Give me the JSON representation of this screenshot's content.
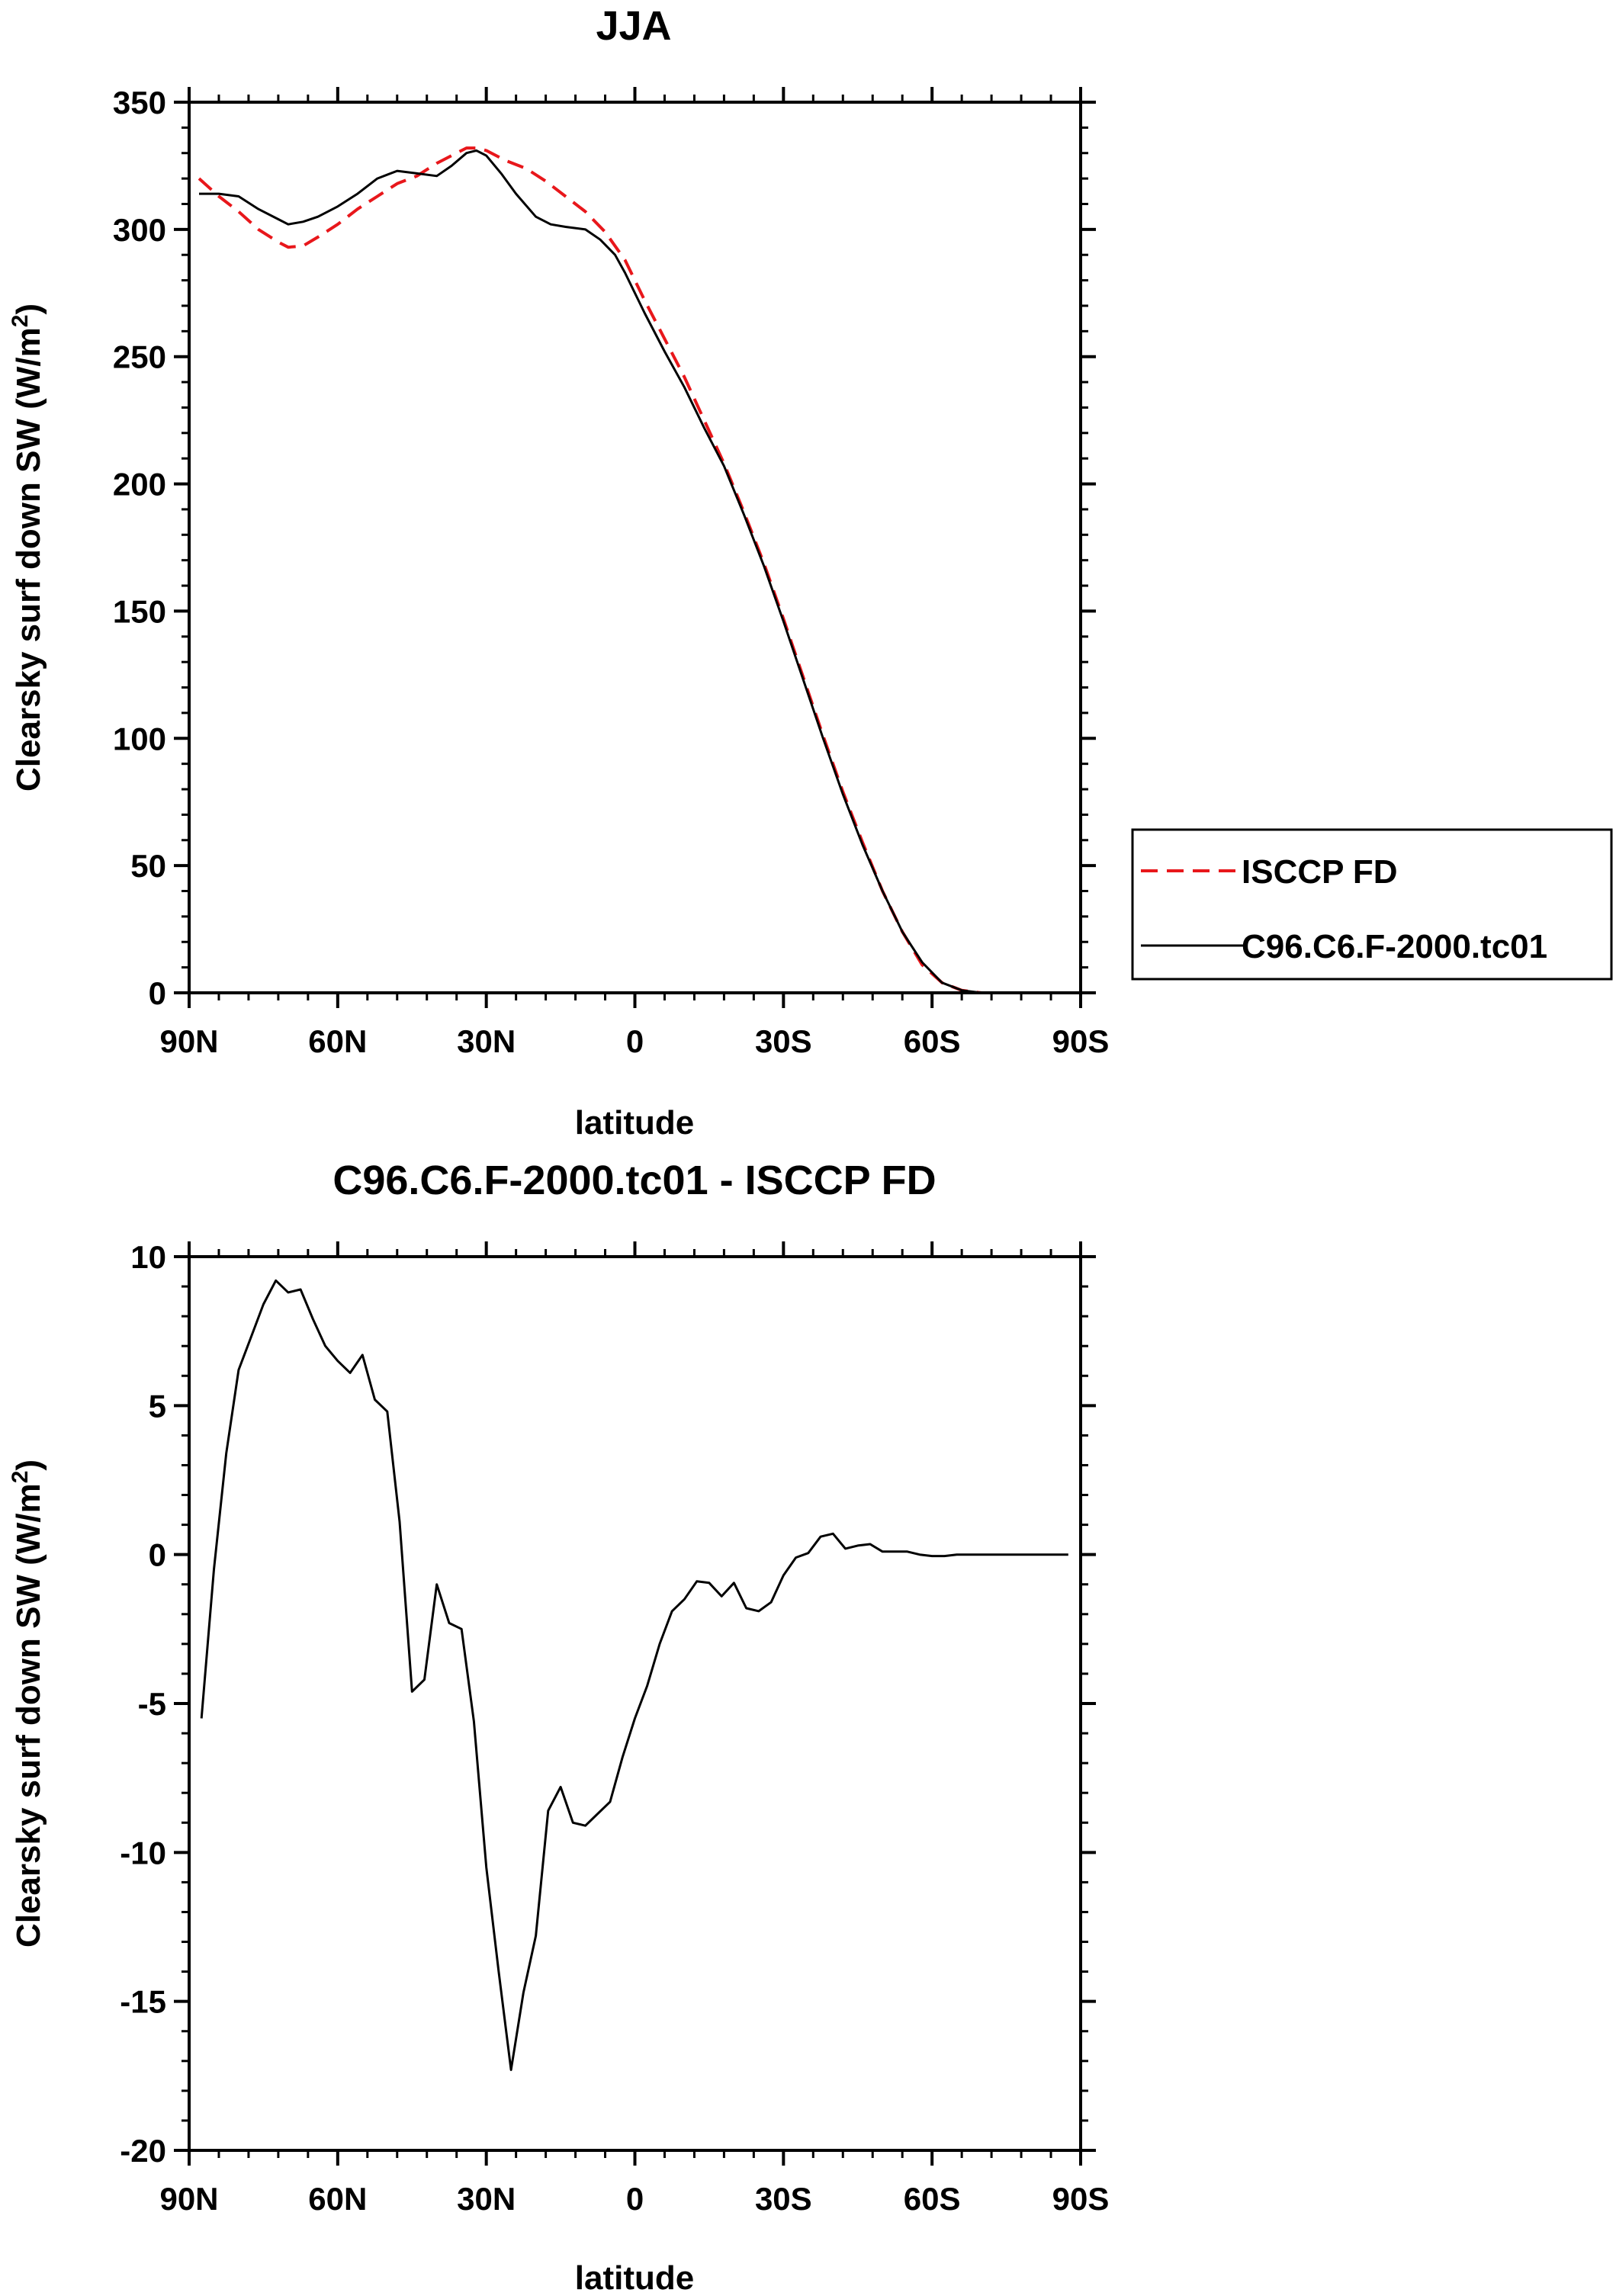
{
  "chart_data": [
    {
      "type": "line",
      "title": "JJA",
      "xlabel": "latitude",
      "ylabel": "Clearsky surf down SW (W/m",
      "ylabel_sup": "2",
      "ylabel_end": ")",
      "xlim": [
        -90,
        90
      ],
      "ylim": [
        0,
        350
      ],
      "xticks": [
        -90,
        -60,
        -30,
        0,
        30,
        60,
        90
      ],
      "xtick_labels": [
        "90N",
        "60N",
        "30N",
        "0",
        "30S",
        "60S",
        "90S"
      ],
      "yticks": [
        0,
        50,
        100,
        150,
        200,
        250,
        300,
        350
      ],
      "ytick_labels": [
        "0",
        "50",
        "100",
        "150",
        "200",
        "250",
        "300",
        "350"
      ],
      "series": [
        {
          "name": "ISCCP FD",
          "color": "#e8171b",
          "style": "dashed",
          "x": [
            -88,
            -84,
            -80,
            -76,
            -72,
            -70,
            -67,
            -64,
            -60,
            -56,
            -52,
            -48,
            -44,
            -40,
            -36,
            -34,
            -32,
            -30,
            -26,
            -22,
            -18,
            -14,
            -10,
            -6,
            -2,
            2,
            6,
            10,
            14,
            18,
            22,
            26,
            30,
            34,
            38,
            42,
            46,
            50,
            54,
            58,
            62,
            66,
            70,
            74,
            78,
            82,
            86,
            88
          ],
          "values": [
            320,
            313,
            307,
            300,
            295,
            293,
            293.5,
            297,
            302,
            308,
            313,
            318,
            321,
            326,
            330,
            332,
            332,
            331,
            327,
            324,
            319,
            313,
            307,
            299,
            288,
            272,
            257,
            242,
            225,
            208,
            189,
            169,
            147,
            124,
            101,
            79,
            59,
            40,
            24,
            11,
            4,
            1,
            0,
            0,
            0,
            0,
            0,
            0
          ]
        },
        {
          "name": "C96.C6.F-2000.tc01",
          "color": "#000000",
          "style": "solid",
          "x": [
            -88,
            -84,
            -80,
            -76,
            -72,
            -70,
            -67,
            -64,
            -60,
            -56,
            -52,
            -48,
            -44,
            -40,
            -37,
            -34,
            -32,
            -30,
            -27,
            -24,
            -20,
            -17,
            -14,
            -10,
            -7,
            -4,
            -2,
            2,
            6,
            10,
            14,
            18,
            22,
            26,
            30,
            34,
            38,
            42,
            46,
            50,
            54,
            58,
            62,
            66,
            70,
            74,
            78,
            82,
            86,
            88
          ],
          "values": [
            314,
            314,
            313,
            308,
            304,
            302,
            303,
            305,
            309,
            314,
            320,
            323,
            322,
            321,
            325,
            330,
            331,
            329,
            322,
            314,
            305,
            302,
            301,
            300,
            296,
            290,
            283,
            267,
            252,
            238,
            222,
            207,
            188,
            168,
            146,
            123,
            100,
            78,
            58,
            40,
            24,
            12,
            4,
            1,
            0,
            0,
            0,
            0,
            0,
            0
          ]
        }
      ],
      "legend": {
        "position": "right",
        "entries": [
          "ISCCP FD",
          "C96.C6.F-2000.tc01"
        ]
      }
    },
    {
      "type": "line",
      "title": "C96.C6.F-2000.tc01 - ISCCP FD",
      "xlabel": "latitude",
      "ylabel": "Clearsky surf down SW (W/m",
      "ylabel_sup": "2",
      "ylabel_end": ")",
      "xlim": [
        -90,
        90
      ],
      "ylim": [
        -20,
        10
      ],
      "xticks": [
        -90,
        -60,
        -30,
        0,
        30,
        60,
        90
      ],
      "xtick_labels": [
        "90N",
        "60N",
        "30N",
        "0",
        "30S",
        "60S",
        "90S"
      ],
      "yticks": [
        -20,
        -15,
        -10,
        -5,
        0,
        5,
        10
      ],
      "ytick_labels": [
        "-20",
        "-15",
        "-10",
        "-5",
        "0",
        "5",
        "10"
      ],
      "series": [
        {
          "name": "C96.C6.F-2000.tc01 - ISCCP FD",
          "color": "#000000",
          "style": "solid",
          "x": [
            -87.5,
            -85,
            -82.5,
            -80,
            -77.5,
            -75,
            -72.5,
            -70,
            -67.5,
            -65,
            -62.5,
            -60,
            -57.5,
            -55,
            -52.5,
            -50,
            -47.5,
            -45,
            -42.5,
            -40,
            -37.5,
            -35,
            -32.5,
            -30,
            -27.5,
            -25,
            -22.5,
            -20,
            -17.5,
            -15,
            -12.5,
            -10,
            -7.5,
            -5,
            -2.5,
            0,
            2.5,
            5,
            7.5,
            10,
            12.5,
            15,
            17.5,
            20,
            22.5,
            25,
            27.5,
            30,
            32.5,
            35,
            37.5,
            40,
            42.5,
            45,
            47.5,
            50,
            52.5,
            55,
            57.5,
            60,
            62.5,
            65,
            67.5,
            70,
            72.5,
            75,
            77.5,
            80,
            82.5,
            85,
            87.5
          ],
          "values": [
            -5.5,
            -0.5,
            3.4,
            6.2,
            7.3,
            8.4,
            9.2,
            8.8,
            8.9,
            7.9,
            7.0,
            6.5,
            6.1,
            6.7,
            5.2,
            4.8,
            1.1,
            -4.6,
            -4.2,
            -1.0,
            -2.3,
            -2.5,
            -5.6,
            -10.5,
            -14.0,
            -17.3,
            -14.7,
            -12.8,
            -8.6,
            -7.8,
            -9.0,
            -9.1,
            -8.7,
            -8.3,
            -6.8,
            -5.5,
            -4.4,
            -3.0,
            -1.9,
            -1.5,
            -0.9,
            -0.95,
            -1.4,
            -0.95,
            -1.8,
            -1.9,
            -1.6,
            -0.7,
            -0.1,
            0.05,
            0.6,
            0.7,
            0.2,
            0.3,
            0.35,
            0.1,
            0.1,
            0.1,
            0.0,
            -0.05,
            -0.05,
            0.0,
            0.0,
            0.0,
            0.0,
            0.0,
            0.0,
            0.0,
            0.0,
            0.0,
            0.0
          ]
        }
      ]
    }
  ]
}
